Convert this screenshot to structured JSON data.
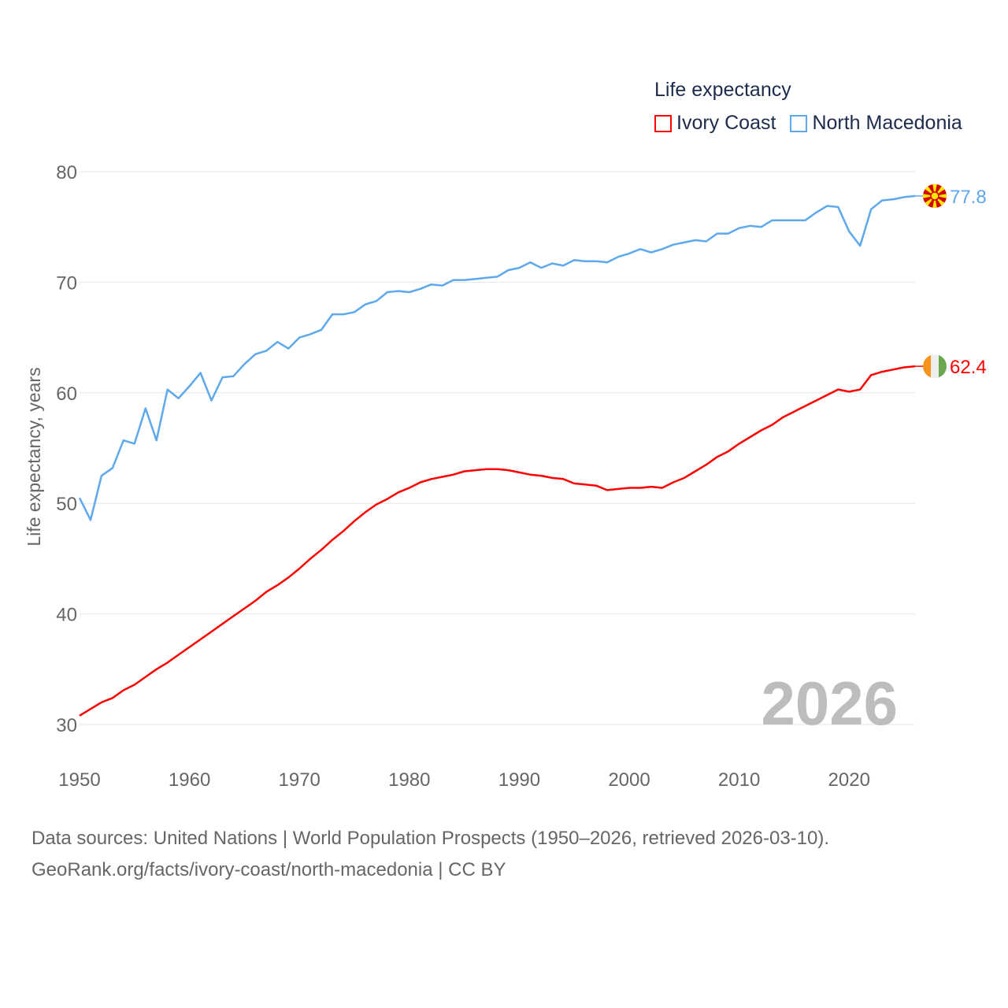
{
  "legend": {
    "title": "Life expectancy",
    "items": [
      {
        "label": "Ivory Coast",
        "color": "#ff0000"
      },
      {
        "label": "North Macedonia",
        "color": "#5ea8ec"
      }
    ]
  },
  "year_watermark": "2026",
  "footer": {
    "line1": "Data sources: United Nations | World Population Prospects (1950–2026, retrieved 2026-03-10).",
    "line2": "GeoRank.org/facts/ivory-coast/north-macedonia | CC BY"
  },
  "chart_data": {
    "type": "line",
    "title": "Life expectancy",
    "xlabel": "",
    "ylabel": "Life expectancy, years",
    "xlim": [
      1950,
      2026
    ],
    "ylim": [
      30,
      80
    ],
    "x_ticks": [
      "1950",
      "1960",
      "1970",
      "1980",
      "1990",
      "2000",
      "2010",
      "2020"
    ],
    "y_ticks": [
      "30",
      "40",
      "50",
      "60",
      "70",
      "80"
    ],
    "grid": true,
    "legend_position": "top-right",
    "x_start": 1950,
    "series": [
      {
        "name": "Ivory Coast",
        "color": "#ff0000",
        "end_label": "62.4",
        "flag": "ivory-coast",
        "values": [
          30.8,
          31.4,
          32.0,
          32.4,
          33.1,
          33.6,
          34.3,
          35.0,
          35.6,
          36.3,
          37.0,
          37.7,
          38.4,
          39.1,
          39.8,
          40.5,
          41.2,
          42.0,
          42.6,
          43.3,
          44.1,
          45.0,
          45.8,
          46.7,
          47.5,
          48.4,
          49.2,
          49.9,
          50.4,
          51.0,
          51.4,
          51.9,
          52.2,
          52.4,
          52.6,
          52.9,
          53.0,
          53.1,
          53.1,
          53.0,
          52.8,
          52.6,
          52.5,
          52.3,
          52.2,
          51.8,
          51.7,
          51.6,
          51.2,
          51.3,
          51.4,
          51.4,
          51.5,
          51.4,
          51.9,
          52.3,
          52.9,
          53.5,
          54.2,
          54.7,
          55.4,
          56.0,
          56.6,
          57.1,
          57.8,
          58.3,
          58.8,
          59.3,
          59.8,
          60.3,
          60.1,
          60.3,
          61.6,
          61.9,
          62.1,
          62.3,
          62.4
        ]
      },
      {
        "name": "North Macedonia",
        "color": "#5ea8ec",
        "end_label": "77.8",
        "flag": "north-macedonia",
        "values": [
          50.5,
          48.5,
          52.5,
          53.2,
          55.7,
          55.4,
          58.6,
          55.7,
          60.3,
          59.5,
          60.6,
          61.8,
          59.3,
          61.4,
          61.5,
          62.6,
          63.5,
          63.8,
          64.6,
          64.0,
          65.0,
          65.3,
          65.7,
          67.1,
          67.1,
          67.3,
          68.0,
          68.3,
          69.1,
          69.2,
          69.1,
          69.4,
          69.8,
          69.7,
          70.2,
          70.2,
          70.3,
          70.4,
          70.5,
          71.1,
          71.3,
          71.8,
          71.3,
          71.7,
          71.5,
          72.0,
          71.9,
          71.9,
          71.8,
          72.3,
          72.6,
          73.0,
          72.7,
          73.0,
          73.4,
          73.6,
          73.8,
          73.7,
          74.4,
          74.4,
          74.9,
          75.1,
          75.0,
          75.6,
          75.6,
          75.6,
          75.6,
          76.3,
          76.9,
          76.8,
          74.6,
          73.3,
          76.6,
          77.4,
          77.5,
          77.7,
          77.8
        ]
      }
    ]
  }
}
